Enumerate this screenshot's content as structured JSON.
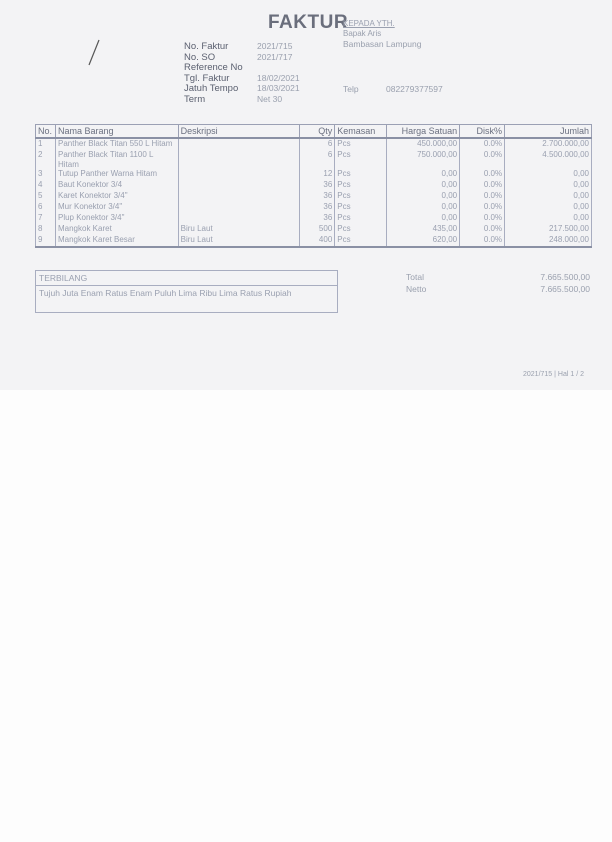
{
  "header": {
    "title": "FAKTUR",
    "recipient_label": "KEPADA YTH.",
    "recipient_name": "Bapak Aris",
    "recipient_address": "Bambasan Lampung",
    "phone_label": "Telp",
    "phone": "082279377597"
  },
  "meta": [
    {
      "label": "No. Faktur",
      "value": "2021/715"
    },
    {
      "label": "No. SO",
      "value": "2021/717"
    },
    {
      "label": "Reference No",
      "value": ""
    },
    {
      "label": "Tgl. Faktur",
      "value": "18/02/2021"
    },
    {
      "label": "Jatuh Tempo",
      "value": "18/03/2021"
    },
    {
      "label": "Term",
      "value": "Net 30"
    }
  ],
  "table": {
    "columns": [
      "No.",
      "Nama Barang",
      "Deskripsi",
      "Qty",
      "Kemasan",
      "Harga Satuan",
      "Disk%",
      "Jumlah"
    ],
    "rows": [
      [
        "1",
        "Panther Black Titan 550 L Hitam",
        "",
        "6",
        "Pcs",
        "450.000,00",
        "0.0%",
        "2.700.000,00"
      ],
      [
        "2",
        "Panther Black Titan 1100 L Hitam",
        "",
        "6",
        "Pcs",
        "750.000,00",
        "0.0%",
        "4.500.000,00"
      ],
      [
        "3",
        "Tutup Panther Warna Hitam",
        "",
        "12",
        "Pcs",
        "0,00",
        "0.0%",
        "0,00"
      ],
      [
        "4",
        "Baut Konektor 3/4",
        "",
        "36",
        "Pcs",
        "0,00",
        "0.0%",
        "0,00"
      ],
      [
        "5",
        "Karet Konektor 3/4\"",
        "",
        "36",
        "Pcs",
        "0,00",
        "0.0%",
        "0,00"
      ],
      [
        "6",
        "Mur Konektor 3/4\"",
        "",
        "36",
        "Pcs",
        "0,00",
        "0.0%",
        "0,00"
      ],
      [
        "7",
        "Plup Konektor 3/4\"",
        "",
        "36",
        "Pcs",
        "0,00",
        "0.0%",
        "0,00"
      ],
      [
        "8",
        "Mangkok Karet",
        "Biru Laut",
        "500",
        "Pcs",
        "435,00",
        "0.0%",
        "217.500,00"
      ],
      [
        "9",
        "Mangkok Karet Besar",
        "Biru Laut",
        "400",
        "Pcs",
        "620,00",
        "0.0%",
        "248.000,00"
      ]
    ]
  },
  "summary": {
    "terbilang_label": "TERBILANG",
    "terbilang": "Tujuh Juta Enam Ratus Enam Puluh Lima Ribu Lima Ratus Rupiah",
    "total_label": "Total",
    "total": "7.665.500,00",
    "netto_label": "Netto",
    "netto": "7.665.500,00"
  },
  "footer": {
    "page": "2021/715 | Hal 1 / 2"
  }
}
